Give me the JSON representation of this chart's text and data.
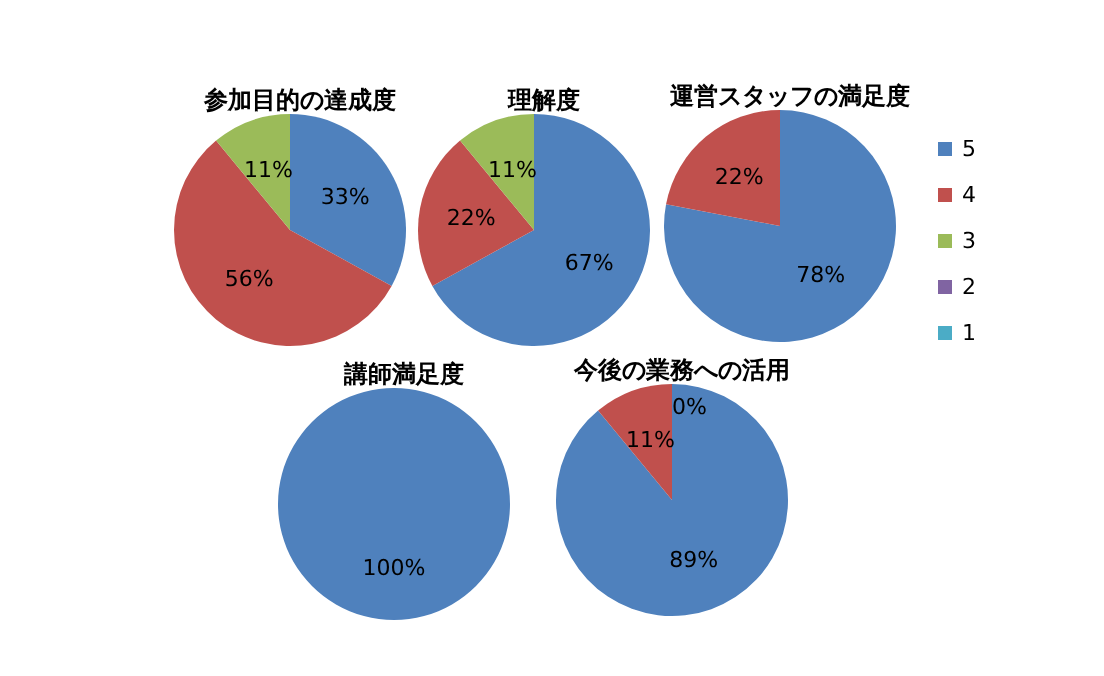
{
  "chart_data": {
    "type": "pie",
    "categories": [
      "5",
      "4",
      "3",
      "2",
      "1"
    ],
    "colors": [
      "#4f81bd",
      "#c0504d",
      "#9bbb59",
      "#8064a2",
      "#4bacc6"
    ],
    "legend": "right",
    "series": [
      {
        "name": "参加目的の達成度",
        "values": [
          33,
          56,
          11,
          0,
          0
        ],
        "value_labels": [
          "33%",
          "56%",
          "11%",
          null,
          null
        ]
      },
      {
        "name": "理解度",
        "values": [
          67,
          22,
          11,
          0,
          0
        ],
        "value_labels": [
          "67%",
          "22%",
          "11%",
          null,
          null
        ]
      },
      {
        "name": "運営スタッフの満足度",
        "values": [
          78,
          22,
          0,
          0,
          0
        ],
        "value_labels": [
          "78%",
          "22%",
          null,
          null,
          null
        ]
      },
      {
        "name": "講師満足度",
        "values": [
          100,
          0,
          0,
          0,
          0
        ],
        "value_labels": [
          "100%",
          null,
          null,
          null,
          null
        ]
      },
      {
        "name": "今後の業務への活用",
        "values": [
          89,
          11,
          0,
          0,
          0
        ],
        "value_labels": [
          "89%",
          "11%",
          "0%",
          null,
          null
        ]
      }
    ]
  }
}
